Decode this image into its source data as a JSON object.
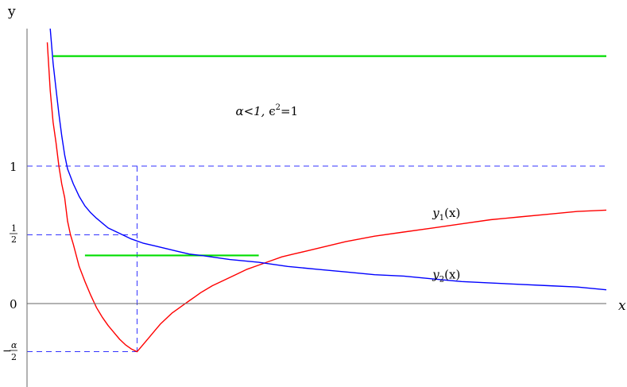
{
  "chart_data": {
    "type": "line",
    "axis_labels": {
      "x": "x",
      "y": "y"
    },
    "xlim": [
      0,
      10
    ],
    "ylim": [
      -0.6,
      2.0
    ],
    "y_ticks": [
      {
        "value": 1,
        "label": "1"
      },
      {
        "value": 0.5,
        "num": "1",
        "den": "2"
      },
      {
        "value": 0,
        "label": "0"
      },
      {
        "value": -0.35,
        "minus": "−",
        "num": "α",
        "den": "2"
      }
    ],
    "annotation": {
      "alpha_part": "α<1, ",
      "eps_part": "ϵ",
      "sup": "2",
      "rest": "=1",
      "color": "#ff00ff",
      "x": 3.6,
      "y": 1.4
    },
    "series": [
      {
        "label_main": "y",
        "label_sub": "1",
        "label_arg": "(x)",
        "color": "#ff0000",
        "label_x": 7.0,
        "label_y": 0.6,
        "x": [
          0.35,
          0.4,
          0.45,
          0.5,
          0.55,
          0.6,
          0.65,
          0.7,
          0.75,
          0.8,
          0.9,
          1.0,
          1.1,
          1.2,
          1.3,
          1.4,
          1.5,
          1.6,
          1.7,
          1.8,
          1.9,
          2.0,
          2.1,
          2.2,
          2.3,
          2.4,
          2.5,
          2.6,
          2.7,
          2.8,
          2.9,
          3.0,
          3.2,
          3.4,
          3.6,
          3.8,
          4.0,
          4.2,
          4.4,
          4.6,
          4.8,
          5.0,
          5.5,
          6.0,
          6.5,
          7.0,
          7.5,
          8.0,
          8.5,
          9.0,
          9.5,
          10.0
        ],
        "y": [
          1.9,
          1.55,
          1.32,
          1.17,
          1.0,
          0.87,
          0.77,
          0.6,
          0.5,
          0.43,
          0.27,
          0.16,
          0.06,
          -0.03,
          -0.1,
          -0.16,
          -0.21,
          -0.26,
          -0.3,
          -0.33,
          -0.35,
          -0.3,
          -0.25,
          -0.2,
          -0.15,
          -0.11,
          -0.07,
          -0.04,
          -0.01,
          0.02,
          0.05,
          0.08,
          0.13,
          0.17,
          0.21,
          0.25,
          0.28,
          0.31,
          0.34,
          0.36,
          0.38,
          0.4,
          0.45,
          0.49,
          0.52,
          0.55,
          0.58,
          0.61,
          0.63,
          0.65,
          0.67,
          0.68
        ]
      },
      {
        "label_main": "y",
        "label_sub": "2",
        "label_arg": "(x)",
        "color": "#0000ff",
        "label_x": 7.0,
        "label_y": 0.2,
        "x": [
          0.4,
          0.45,
          0.5,
          0.55,
          0.6,
          0.65,
          0.7,
          0.8,
          0.9,
          1.0,
          1.1,
          1.2,
          1.4,
          1.6,
          1.8,
          2.0,
          2.2,
          2.4,
          2.6,
          2.8,
          3.0,
          3.5,
          4.0,
          4.5,
          5.0,
          5.5,
          6.0,
          6.5,
          7.0,
          7.5,
          8.0,
          8.5,
          9.0,
          9.5,
          10.0
        ],
        "y": [
          2.0,
          1.75,
          1.56,
          1.38,
          1.22,
          1.08,
          0.98,
          0.87,
          0.78,
          0.71,
          0.66,
          0.62,
          0.55,
          0.51,
          0.47,
          0.44,
          0.42,
          0.4,
          0.38,
          0.36,
          0.35,
          0.32,
          0.3,
          0.27,
          0.25,
          0.23,
          0.21,
          0.2,
          0.18,
          0.16,
          0.15,
          0.14,
          0.13,
          0.12,
          0.1
        ]
      }
    ],
    "horizontal_segments": [
      {
        "color": "#00dd00",
        "y": 1.8,
        "x1": 0.45,
        "x2": 10.0
      },
      {
        "color": "#00dd00",
        "y": 0.35,
        "x1": 1.0,
        "x2": 4.0
      }
    ],
    "dashed_guides": [
      {
        "color": "#3333ff",
        "x1": 0.0,
        "y1": 1.0,
        "x2": 10.0,
        "y2": 1.0
      },
      {
        "color": "#3333ff",
        "x1": 0.0,
        "y1": 0.5,
        "x2": 1.9,
        "y2": 0.5
      },
      {
        "color": "#3333ff",
        "x1": 0.0,
        "y1": -0.35,
        "x2": 1.9,
        "y2": -0.35
      },
      {
        "color": "#3333ff",
        "x1": 1.9,
        "y1": 1.0,
        "x2": 1.9,
        "y2": -0.35
      }
    ]
  }
}
